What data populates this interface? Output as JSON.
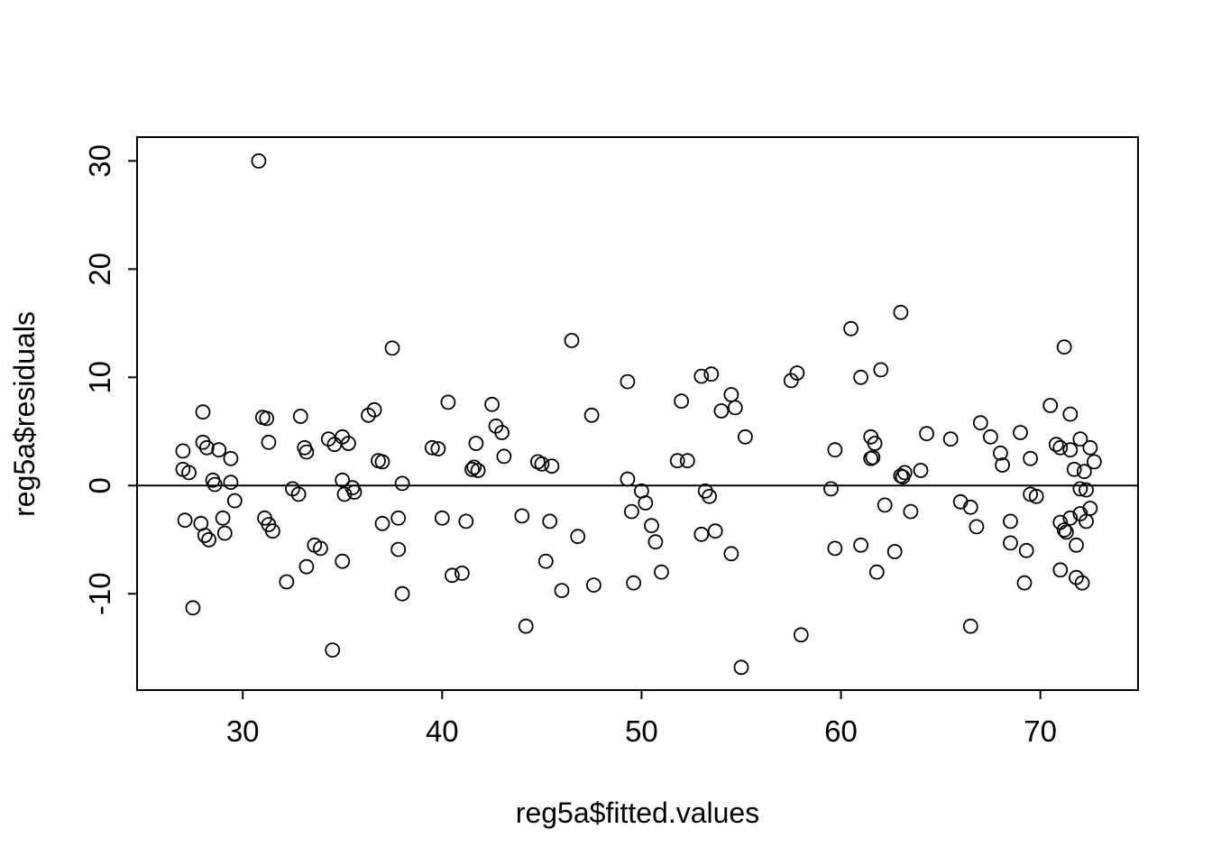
{
  "chart_data": {
    "type": "scatter",
    "title": "",
    "xlabel": "reg5a$fitted.values",
    "ylabel": "reg5a$residuals",
    "xlim": [
      24.7,
      74.9
    ],
    "ylim": [
      -18.9,
      32.2
    ],
    "x_ticks": [
      30,
      40,
      50,
      60,
      70
    ],
    "y_ticks": [
      -10,
      0,
      10,
      20,
      30
    ],
    "grid": false,
    "legend": "none",
    "reference_line_y": 0,
    "marker": "open-circle",
    "marker_color": "#000000",
    "points": [
      [
        27.0,
        3.2
      ],
      [
        27.0,
        1.5
      ],
      [
        27.3,
        1.2
      ],
      [
        27.1,
        -3.2
      ],
      [
        27.5,
        -11.3
      ],
      [
        28.0,
        4.0
      ],
      [
        28.0,
        6.8
      ],
      [
        28.2,
        3.5
      ],
      [
        27.9,
        -3.5
      ],
      [
        28.1,
        -4.6
      ],
      [
        28.3,
        -5.0
      ],
      [
        28.5,
        0.5
      ],
      [
        28.6,
        0.1
      ],
      [
        28.8,
        3.3
      ],
      [
        29.0,
        -3.0
      ],
      [
        29.1,
        -4.4
      ],
      [
        29.4,
        2.5
      ],
      [
        29.4,
        0.3
      ],
      [
        29.6,
        -1.4
      ],
      [
        30.8,
        30.0
      ],
      [
        31.0,
        6.3
      ],
      [
        31.2,
        6.2
      ],
      [
        31.3,
        4.0
      ],
      [
        31.1,
        -3.0
      ],
      [
        31.3,
        -3.6
      ],
      [
        31.5,
        -4.2
      ],
      [
        32.2,
        -8.9
      ],
      [
        32.5,
        -0.3
      ],
      [
        32.8,
        -0.8
      ],
      [
        32.9,
        6.4
      ],
      [
        33.1,
        3.5
      ],
      [
        33.2,
        3.1
      ],
      [
        33.2,
        -7.5
      ],
      [
        33.6,
        -5.5
      ],
      [
        33.9,
        -5.8
      ],
      [
        34.3,
        4.3
      ],
      [
        34.6,
        3.8
      ],
      [
        34.5,
        -15.2
      ],
      [
        35.0,
        4.5
      ],
      [
        35.0,
        0.5
      ],
      [
        35.1,
        -0.8
      ],
      [
        35.0,
        -7.0
      ],
      [
        35.3,
        3.9
      ],
      [
        35.5,
        -0.2
      ],
      [
        35.6,
        -0.6
      ],
      [
        36.3,
        6.5
      ],
      [
        36.6,
        7.0
      ],
      [
        36.8,
        2.3
      ],
      [
        37.0,
        2.2
      ],
      [
        37.0,
        -3.5
      ],
      [
        37.5,
        12.7
      ],
      [
        37.8,
        -3.0
      ],
      [
        37.8,
        -5.9
      ],
      [
        38.0,
        0.2
      ],
      [
        38.0,
        -10.0
      ],
      [
        39.5,
        3.5
      ],
      [
        39.8,
        3.4
      ],
      [
        40.0,
        -3.0
      ],
      [
        40.3,
        7.7
      ],
      [
        40.5,
        -8.3
      ],
      [
        41.0,
        -8.1
      ],
      [
        41.2,
        -3.3
      ],
      [
        41.5,
        1.5
      ],
      [
        41.6,
        1.7
      ],
      [
        41.7,
        3.9
      ],
      [
        41.8,
        1.4
      ],
      [
        42.5,
        7.5
      ],
      [
        42.7,
        5.5
      ],
      [
        43.0,
        4.9
      ],
      [
        43.1,
        2.7
      ],
      [
        44.0,
        -2.8
      ],
      [
        44.2,
        -13.0
      ],
      [
        44.8,
        2.2
      ],
      [
        45.0,
        2.0
      ],
      [
        45.2,
        -7.0
      ],
      [
        45.4,
        -3.3
      ],
      [
        45.5,
        1.8
      ],
      [
        46.0,
        -9.7
      ],
      [
        46.5,
        13.4
      ],
      [
        46.8,
        -4.7
      ],
      [
        47.5,
        6.5
      ],
      [
        47.6,
        -9.2
      ],
      [
        49.3,
        9.6
      ],
      [
        49.3,
        0.6
      ],
      [
        49.5,
        -2.4
      ],
      [
        49.6,
        -9.0
      ],
      [
        50.0,
        -0.5
      ],
      [
        50.2,
        -1.6
      ],
      [
        50.5,
        -3.7
      ],
      [
        50.7,
        -5.2
      ],
      [
        51.0,
        -8.0
      ],
      [
        51.8,
        2.3
      ],
      [
        52.0,
        7.8
      ],
      [
        52.3,
        2.3
      ],
      [
        53.0,
        10.1
      ],
      [
        53.0,
        -4.5
      ],
      [
        53.2,
        -0.5
      ],
      [
        53.4,
        -1.0
      ],
      [
        53.5,
        10.3
      ],
      [
        53.7,
        -4.2
      ],
      [
        54.0,
        6.9
      ],
      [
        54.5,
        8.4
      ],
      [
        54.5,
        -6.3
      ],
      [
        54.7,
        7.2
      ],
      [
        55.0,
        -16.8
      ],
      [
        55.2,
        4.5
      ],
      [
        57.5,
        9.7
      ],
      [
        57.8,
        10.4
      ],
      [
        58.0,
        -13.8
      ],
      [
        59.5,
        -0.3
      ],
      [
        59.7,
        3.3
      ],
      [
        59.7,
        -5.8
      ],
      [
        60.5,
        14.5
      ],
      [
        61.0,
        10.0
      ],
      [
        61.0,
        -5.5
      ],
      [
        61.5,
        2.5
      ],
      [
        61.6,
        2.6
      ],
      [
        61.5,
        4.5
      ],
      [
        61.7,
        3.9
      ],
      [
        61.8,
        -8.0
      ],
      [
        62.0,
        10.7
      ],
      [
        62.2,
        -1.8
      ],
      [
        62.7,
        -6.1
      ],
      [
        63.0,
        16.0
      ],
      [
        63.0,
        0.9
      ],
      [
        63.1,
        0.8
      ],
      [
        63.2,
        1.2
      ],
      [
        63.5,
        -2.4
      ],
      [
        64.0,
        1.4
      ],
      [
        64.3,
        4.8
      ],
      [
        65.5,
        4.3
      ],
      [
        66.0,
        -1.5
      ],
      [
        66.5,
        -2.0
      ],
      [
        66.5,
        -13.0
      ],
      [
        66.8,
        -3.8
      ],
      [
        67.0,
        5.8
      ],
      [
        67.5,
        4.5
      ],
      [
        68.0,
        3.0
      ],
      [
        68.1,
        1.9
      ],
      [
        68.5,
        -3.3
      ],
      [
        68.5,
        -5.3
      ],
      [
        69.0,
        4.9
      ],
      [
        69.2,
        -9.0
      ],
      [
        69.3,
        -6.0
      ],
      [
        69.5,
        2.5
      ],
      [
        69.5,
        -0.8
      ],
      [
        69.8,
        -1.0
      ],
      [
        70.5,
        7.4
      ],
      [
        70.8,
        3.8
      ],
      [
        71.0,
        3.5
      ],
      [
        71.0,
        -3.4
      ],
      [
        71.0,
        -7.8
      ],
      [
        71.2,
        12.8
      ],
      [
        71.2,
        -4.1
      ],
      [
        71.3,
        -4.3
      ],
      [
        71.5,
        6.6
      ],
      [
        71.5,
        3.3
      ],
      [
        71.5,
        -3.0
      ],
      [
        71.7,
        1.5
      ],
      [
        71.8,
        -5.5
      ],
      [
        71.8,
        -8.5
      ],
      [
        72.0,
        4.3
      ],
      [
        72.0,
        -0.3
      ],
      [
        72.0,
        -2.6
      ],
      [
        72.1,
        -9.0
      ],
      [
        72.2,
        1.3
      ],
      [
        72.3,
        -0.4
      ],
      [
        72.3,
        -3.3
      ],
      [
        72.5,
        3.5
      ],
      [
        72.5,
        -2.1
      ],
      [
        72.7,
        2.2
      ]
    ]
  }
}
